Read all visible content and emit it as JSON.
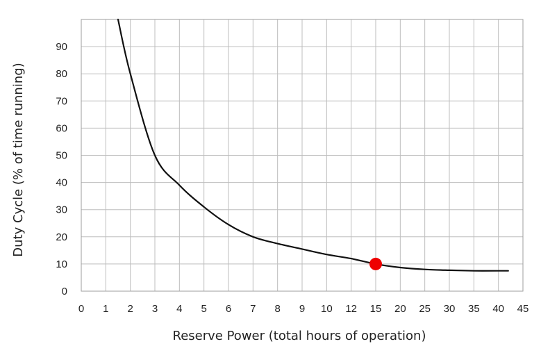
{
  "chart_data": {
    "type": "line",
    "title": "",
    "xlabel": "Reserve Power (total hours of operation)",
    "ylabel": "Duty Cycle (% of time running)",
    "x_ticks": [
      "0",
      "1",
      "2",
      "3",
      "4",
      "5",
      "6",
      "7",
      "8",
      "9",
      "10",
      "12",
      "15",
      "20",
      "25",
      "30",
      "35",
      "40",
      "45"
    ],
    "y_ticks": [
      "0",
      "10",
      "20",
      "30",
      "40",
      "50",
      "60",
      "70",
      "80",
      "90"
    ],
    "ylim": [
      0,
      100
    ],
    "grid": true,
    "x_scale": "categorical-ticks (non-uniform spacing: unit steps 0–10, then 12, then steps of 5)",
    "series": [
      {
        "color": "#111111",
        "x": [
          1.5,
          2,
          3,
          4,
          5,
          6,
          7,
          8,
          9,
          10,
          12,
          15,
          20,
          25,
          30,
          35,
          40,
          42
        ],
        "y": [
          100,
          80,
          50,
          39,
          31,
          24.5,
          20,
          17.5,
          15.5,
          13.5,
          12,
          10,
          8.7,
          8,
          7.7,
          7.5,
          7.5,
          7.5
        ]
      }
    ],
    "highlight_point": {
      "x": 15,
      "y": 10,
      "color": "#ee0000"
    }
  }
}
